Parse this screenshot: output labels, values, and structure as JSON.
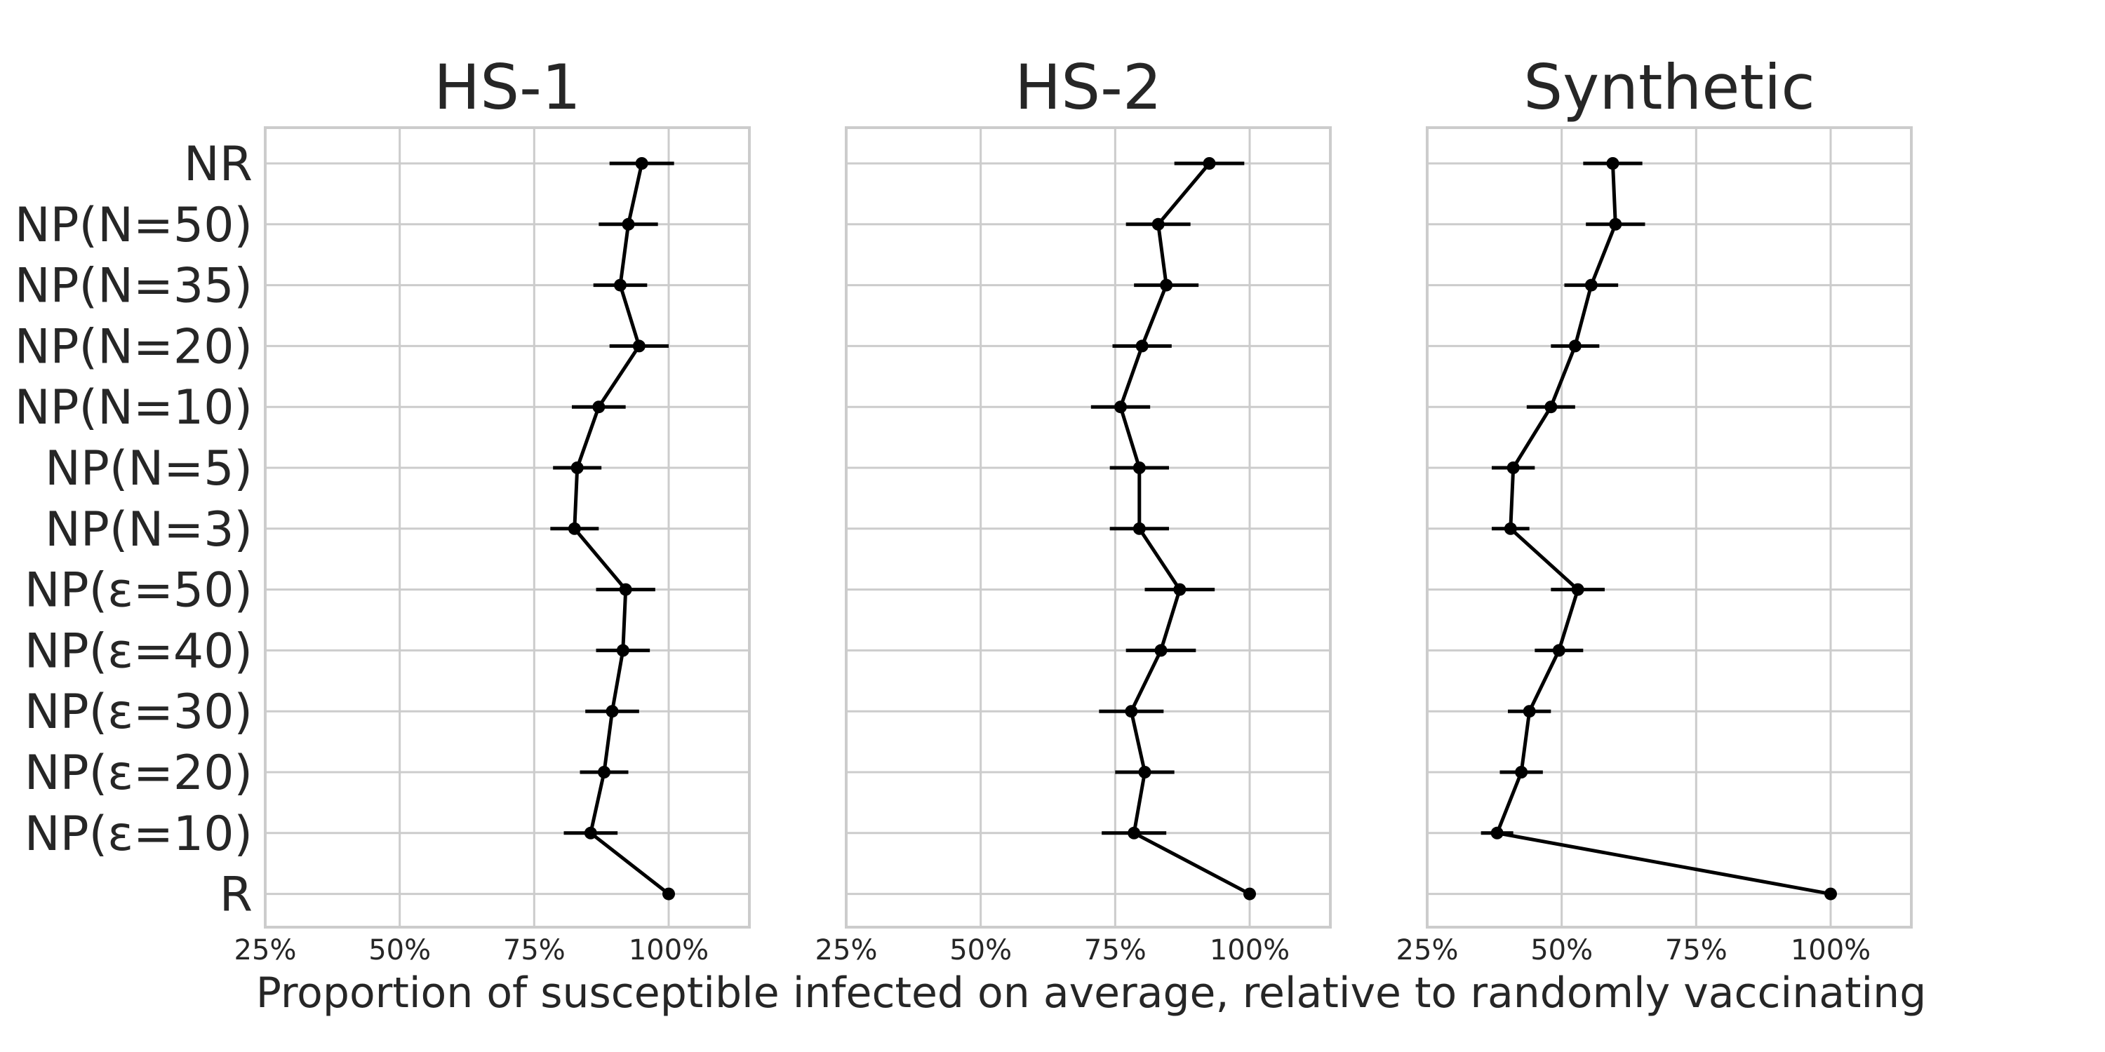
{
  "chart_data": {
    "type": "line",
    "orientation": "horizontal",
    "xlabel": "Proportion of susceptible infected on average, relative to randomly vaccinating",
    "xlim": [
      25,
      115
    ],
    "xticks": [
      25,
      50,
      75,
      100
    ],
    "xtick_labels": [
      "25%",
      "50%",
      "75%",
      "100%"
    ],
    "categories": [
      "NR",
      "NP(N=50)",
      "NP(N=35)",
      "NP(N=20)",
      "NP(N=10)",
      "NP(N=5)",
      "NP(N=3)",
      "NP(ε=50)",
      "NP(ε=40)",
      "NP(ε=30)",
      "NP(ε=20)",
      "NP(ε=10)",
      "R"
    ],
    "grid": true,
    "color": "#000000",
    "panels": [
      {
        "title": "HS-1",
        "values": [
          95,
          92.5,
          91,
          94.5,
          87,
          83,
          82.5,
          92,
          91.5,
          89.5,
          88,
          85.5,
          100
        ],
        "errors": [
          6,
          5.5,
          5,
          5.5,
          5,
          4.5,
          4.5,
          5.5,
          5,
          5,
          4.5,
          5,
          0
        ]
      },
      {
        "title": "HS-2",
        "values": [
          92.5,
          83,
          84.5,
          80,
          76,
          79.5,
          79.5,
          87,
          83.5,
          78,
          80.5,
          78.5,
          100
        ],
        "errors": [
          6.5,
          6,
          6,
          5.5,
          5.5,
          5.5,
          5.5,
          6.5,
          6.5,
          6,
          5.5,
          6,
          0
        ]
      },
      {
        "title": "Synthetic",
        "values": [
          59.5,
          60,
          55.5,
          52.5,
          48,
          41,
          40.5,
          53,
          49.5,
          44,
          42.5,
          38,
          100
        ],
        "errors": [
          5.5,
          5.5,
          5,
          4.5,
          4.5,
          4,
          3.5,
          5,
          4.5,
          4,
          4,
          3,
          0
        ]
      }
    ]
  }
}
